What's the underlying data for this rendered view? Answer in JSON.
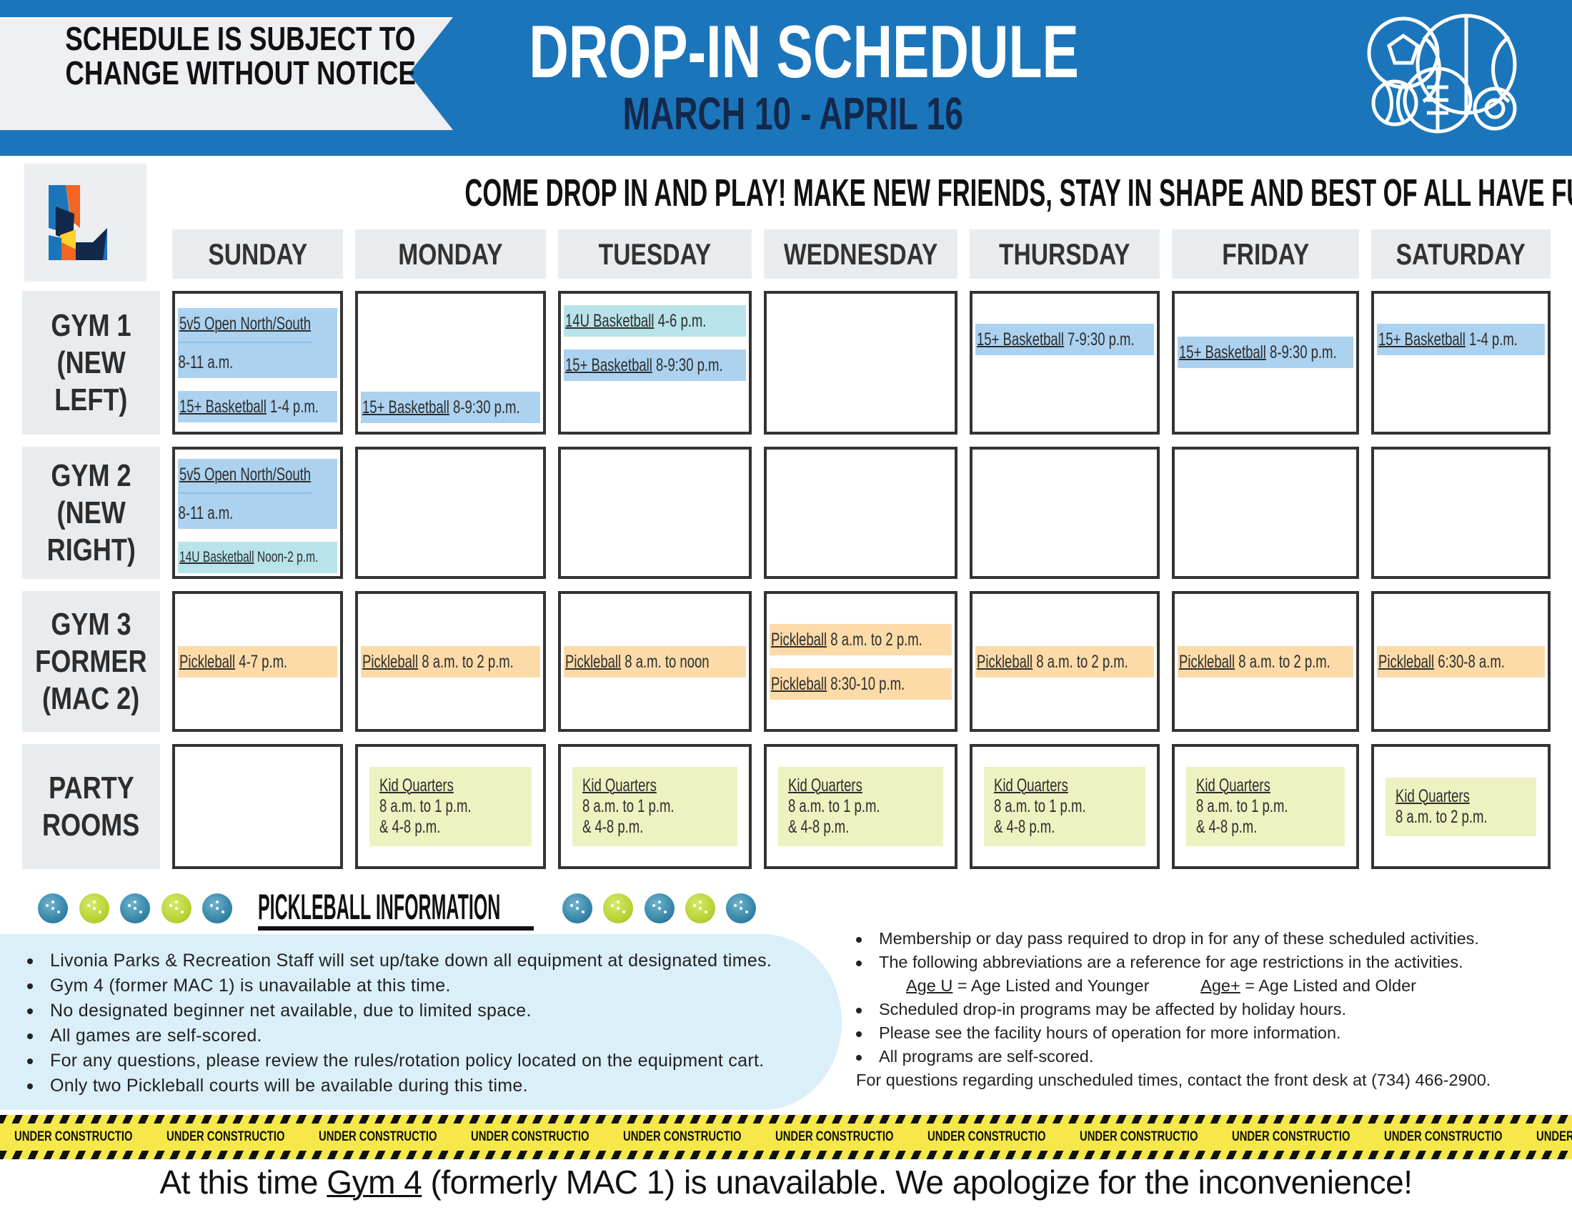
{
  "header": {
    "notice_line1": "SCHEDULE IS SUBJECT TO",
    "notice_line2": "CHANGE WITHOUT NOTICE",
    "title": "DROP-IN SCHEDULE",
    "dates": "MARCH 10 - APRIL 16",
    "sports_icon": "sports-balls-icon",
    "logo": "livonia-logo"
  },
  "tagline": "COME DROP IN AND PLAY! MAKE NEW FRIENDS, STAY IN SHAPE AND BEST OF ALL HAVE FUN.",
  "days": [
    "SUNDAY",
    "MONDAY",
    "TUESDAY",
    "WEDNESDAY",
    "THURSDAY",
    "FRIDAY",
    "SATURDAY"
  ],
  "colors": {
    "header_blue": "#1b75bb",
    "navy": "#13294b",
    "basketball": "#acd2ef",
    "youth_basketball": "#b8e3ea",
    "pickleball": "#fddba9",
    "kid_quarters": "#edf2c0"
  },
  "rows": [
    {
      "label": [
        "GYM 1",
        "(NEW",
        "LEFT)"
      ],
      "cells": [
        [
          {
            "name": "5v5 Open North/South",
            "time": "8-11 a.m.",
            "color": "blue",
            "split": true
          },
          {
            "name": "15+ Basketball",
            "time": "1-4 p.m.",
            "color": "blue"
          }
        ],
        [
          {
            "name": "15+ Basketball",
            "time": "8-9:30 p.m.",
            "color": "blue"
          }
        ],
        [
          {
            "name": "14U Basketball",
            "time": "4-6 p.m.",
            "color": "teal"
          },
          {
            "name": "15+ Basketball",
            "time": "8-9:30 p.m.",
            "color": "blue"
          }
        ],
        [],
        [
          {
            "name": "15+ Basketball",
            "time": "7-9:30 p.m.",
            "color": "blue"
          }
        ],
        [
          {
            "name": "15+ Basketball",
            "time": "8-9:30 p.m.",
            "color": "blue"
          }
        ],
        [
          {
            "name": "15+ Basketball",
            "time": "1-4 p.m.",
            "color": "blue"
          }
        ]
      ]
    },
    {
      "label": [
        "GYM 2",
        "(NEW",
        "RIGHT)"
      ],
      "cells": [
        [
          {
            "name": "5v5 Open North/South",
            "time": "8-11 a.m.",
            "color": "blue",
            "split": true
          },
          {
            "name": "14U Basketball",
            "time": "Noon-2 p.m.",
            "color": "teal",
            "small": true
          }
        ],
        [],
        [],
        [],
        [],
        [],
        []
      ]
    },
    {
      "label": [
        "GYM 3",
        "FORMER",
        "(MAC 2)"
      ],
      "cells": [
        [
          {
            "name": "Pickleball",
            "time": "4-7 p.m.",
            "color": "orange"
          }
        ],
        [
          {
            "name": "Pickleball",
            "time": "8 a.m. to 2 p.m.",
            "color": "orange"
          }
        ],
        [
          {
            "name": "Pickleball",
            "time": "8 a.m. to noon",
            "color": "orange"
          }
        ],
        [
          {
            "name": "Pickleball",
            "time": "8 a.m. to 2 p.m.",
            "color": "orange"
          },
          {
            "name": "Pickleball",
            "time": "8:30-10 p.m.",
            "color": "orange"
          }
        ],
        [
          {
            "name": "Pickleball",
            "time": "8 a.m. to 2 p.m.",
            "color": "orange"
          }
        ],
        [
          {
            "name": "Pickleball",
            "time": "8 a.m. to 2 p.m.",
            "color": "orange"
          }
        ],
        [
          {
            "name": "Pickleball",
            "time": "6:30-8 a.m.",
            "color": "orange"
          }
        ]
      ]
    },
    {
      "label": [
        "PARTY",
        "ROOMS"
      ],
      "cells": [
        [],
        [
          {
            "name": "Kid Quarters",
            "time": "8 a.m. to 1 p.m.",
            "time2": "& 4-8 p.m.",
            "color": "green"
          }
        ],
        [
          {
            "name": "Kid Quarters",
            "time": "8 a.m. to 1 p.m.",
            "time2": "& 4-8 p.m.",
            "color": "green"
          }
        ],
        [
          {
            "name": "Kid Quarters",
            "time": "8 a.m. to 1 p.m.",
            "time2": "& 4-8 p.m.",
            "color": "green"
          }
        ],
        [
          {
            "name": "Kid Quarters",
            "time": "8 a.m. to 1 p.m.",
            "time2": "& 4-8 p.m.",
            "color": "green"
          }
        ],
        [
          {
            "name": "Kid Quarters",
            "time": "8 a.m. to 1 p.m.",
            "time2": "& 4-8 p.m.",
            "color": "green"
          }
        ],
        [
          {
            "name": "Kid Quarters",
            "time": "8 a.m. to 2 p.m.",
            "color": "green"
          }
        ]
      ]
    }
  ],
  "pickleball_info": {
    "title": "PICKLEBALL INFORMATION",
    "items": [
      "Livonia Parks & Recreation Staff will set up/take down all equipment at designated times.",
      "Gym 4 (former MAC 1) is unavailable at this time.",
      "No designated beginner net available, due to limited space.",
      "All games are self-scored.",
      "For any questions, please review the rules/rotation policy located on the equipment cart.",
      "Only two Pickleball courts will be available during this time."
    ]
  },
  "notes": {
    "items_before": [
      "Membership or day pass required to drop in for any of these scheduled activities.",
      "The following abbreviations are a reference for age restrictions in the activities."
    ],
    "abbr_u_term": "Age U",
    "abbr_u_def": " = Age Listed and Younger",
    "abbr_plus_term": "Age+",
    "abbr_plus_def": " = Age Listed and Older",
    "items_after": [
      "Scheduled drop-in programs may be affected by holiday hours.",
      "Please see the facility hours of operation for more information.",
      "All programs are self-scored."
    ],
    "contact": "For questions regarding unscheduled times, contact the front desk at (734) 466-2900."
  },
  "tape_text": "UNDER CONSTRUCTION",
  "footer": {
    "before": "At this time ",
    "link": "Gym 4",
    "after": " (formerly MAC 1) is unavailable. We apologize for the inconvenience!"
  }
}
